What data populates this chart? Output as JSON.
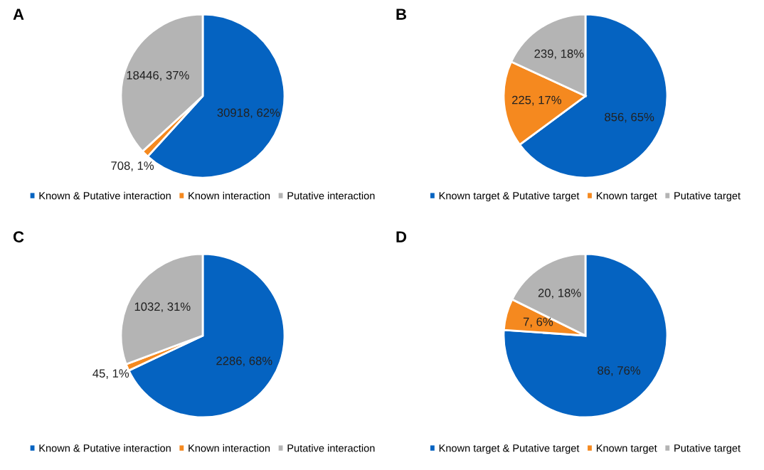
{
  "chart_data": [
    {
      "type": "pie",
      "title": "A",
      "categories": [
        "Known & Putative interaction",
        "Known interaction",
        "Putative interaction"
      ],
      "values": [
        30918,
        708,
        18446
      ],
      "value_labels": [
        "30918, 62%",
        "708, 1%",
        "18446, 37%"
      ],
      "colors": [
        "#0563c1",
        "#f5891f",
        "#b4b4b4"
      ],
      "legend": "bottom"
    },
    {
      "type": "pie",
      "title": "B",
      "categories": [
        "Known target & Putative target",
        "Known target",
        "Putative target"
      ],
      "values": [
        856,
        225,
        239
      ],
      "value_labels": [
        "856, 65%",
        "225, 17%",
        "239, 18%"
      ],
      "colors": [
        "#0563c1",
        "#f5891f",
        "#b4b4b4"
      ],
      "legend": "bottom"
    },
    {
      "type": "pie",
      "title": "C",
      "categories": [
        "Known & Putative interaction",
        "Known interaction",
        "Putative interaction"
      ],
      "values": [
        2286,
        45,
        1032
      ],
      "value_labels": [
        "2286, 68%",
        "45, 1%",
        "1032, 31%"
      ],
      "colors": [
        "#0563c1",
        "#f5891f",
        "#b4b4b4"
      ],
      "legend": "bottom"
    },
    {
      "type": "pie",
      "title": "D",
      "categories": [
        "Known target & Putative target",
        "Known target",
        "Putative target"
      ],
      "values": [
        86,
        7,
        20
      ],
      "value_labels": [
        "86, 76%",
        "7, 6%",
        "20, 18%"
      ],
      "colors": [
        "#0563c1",
        "#f5891f",
        "#b4b4b4"
      ],
      "legend": "bottom"
    }
  ]
}
